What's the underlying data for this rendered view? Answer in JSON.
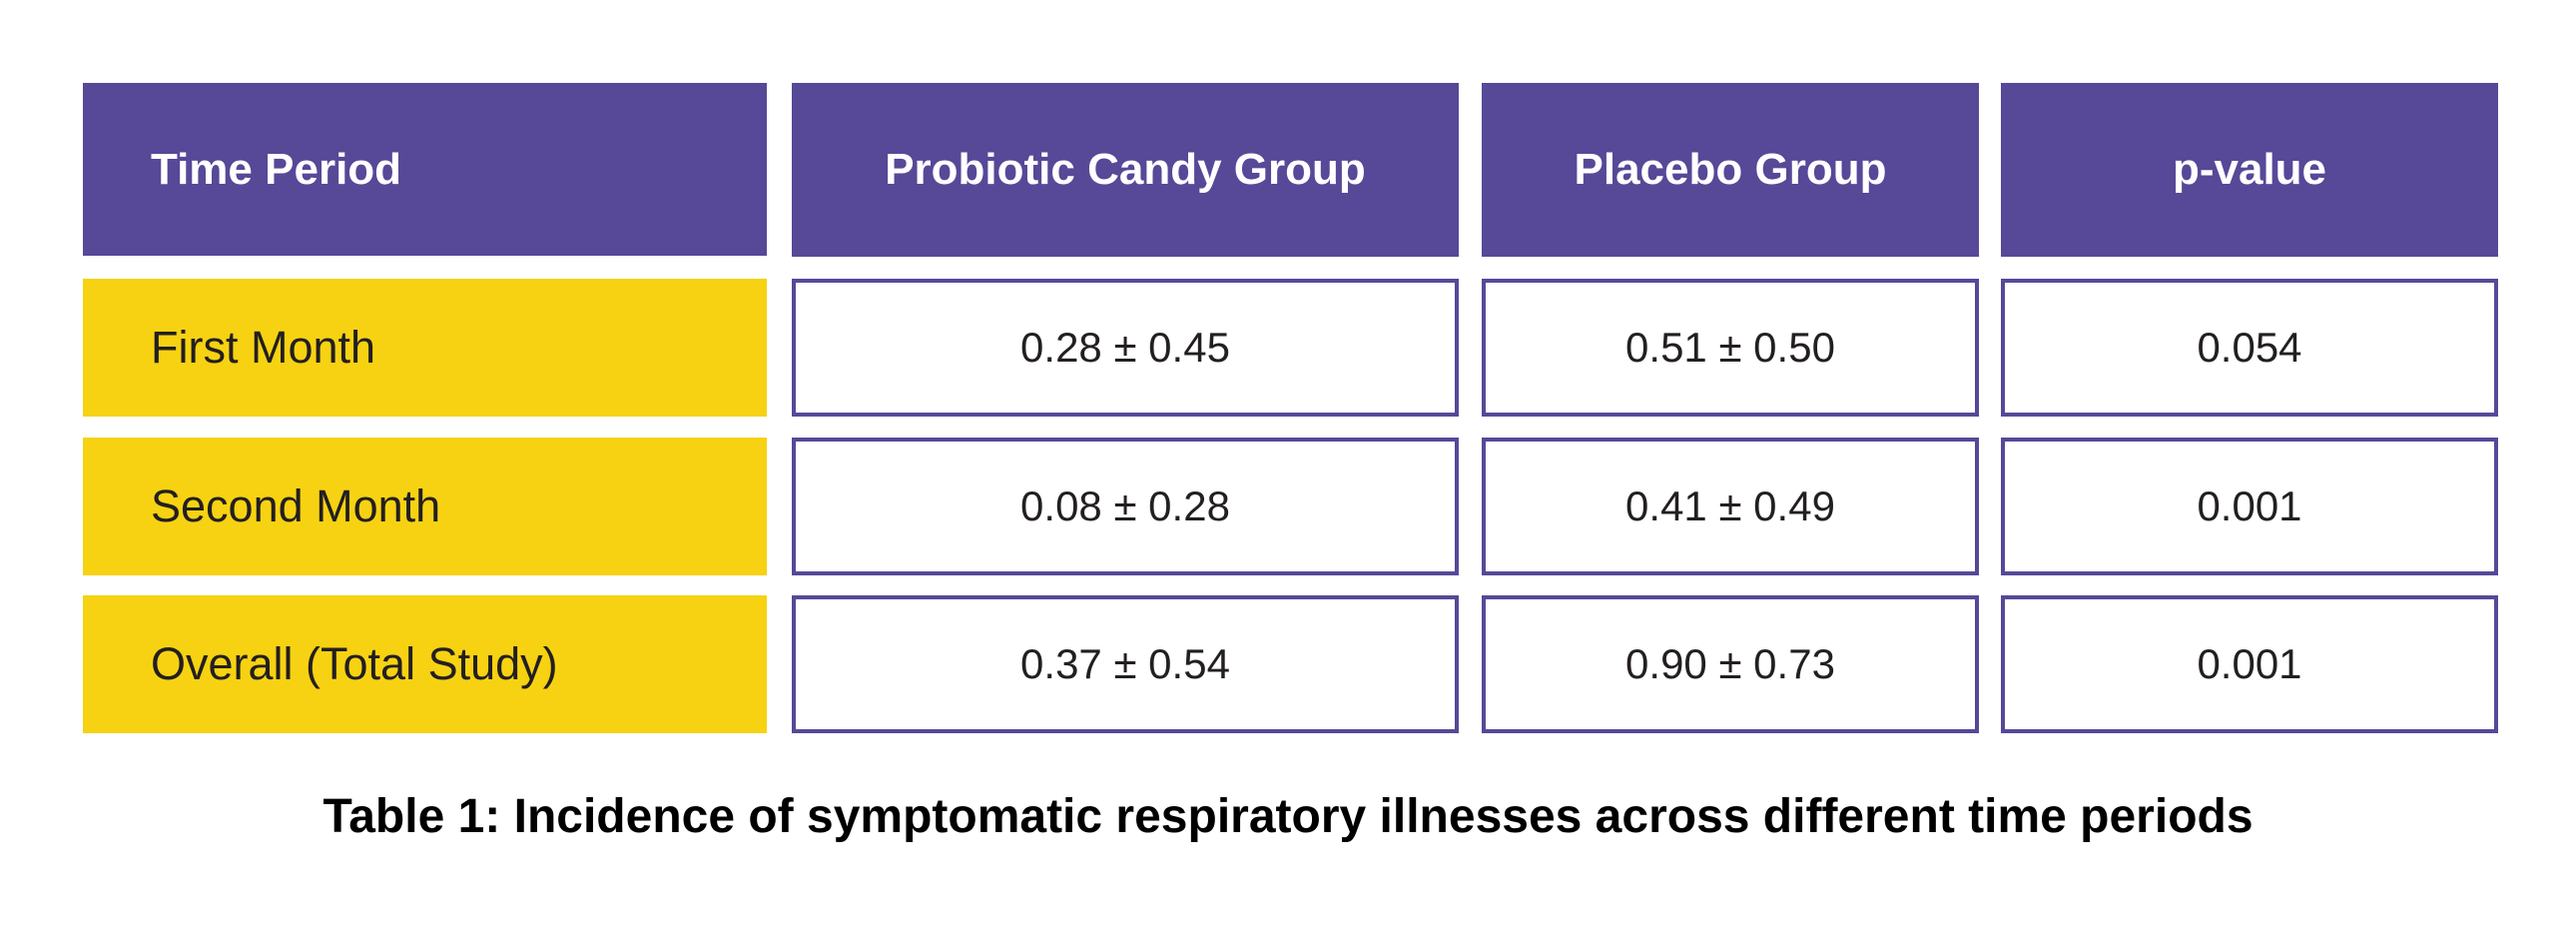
{
  "table": {
    "headers": [
      "Time Period",
      "Probiotic Candy Group",
      "Placebo Group",
      "p-value"
    ],
    "rows": [
      {
        "period": "First Month",
        "probiotic": "0.28 ± 0.45",
        "placebo": "0.51 ± 0.50",
        "p_value": "0.054"
      },
      {
        "period": "Second Month",
        "probiotic": "0.08 ± 0.28",
        "placebo": "0.41 ± 0.49",
        "p_value": "0.001"
      },
      {
        "period": "Overall (Total Study)",
        "probiotic": "0.37 ± 0.54",
        "placebo": "0.90 ± 0.73",
        "p_value": "0.001"
      }
    ]
  },
  "caption": "Table 1: Incidence of symptomatic respiratory illnesses across different time periods",
  "colors": {
    "header": "#574898",
    "period_fill": "#F7D212",
    "border": "#574898"
  }
}
